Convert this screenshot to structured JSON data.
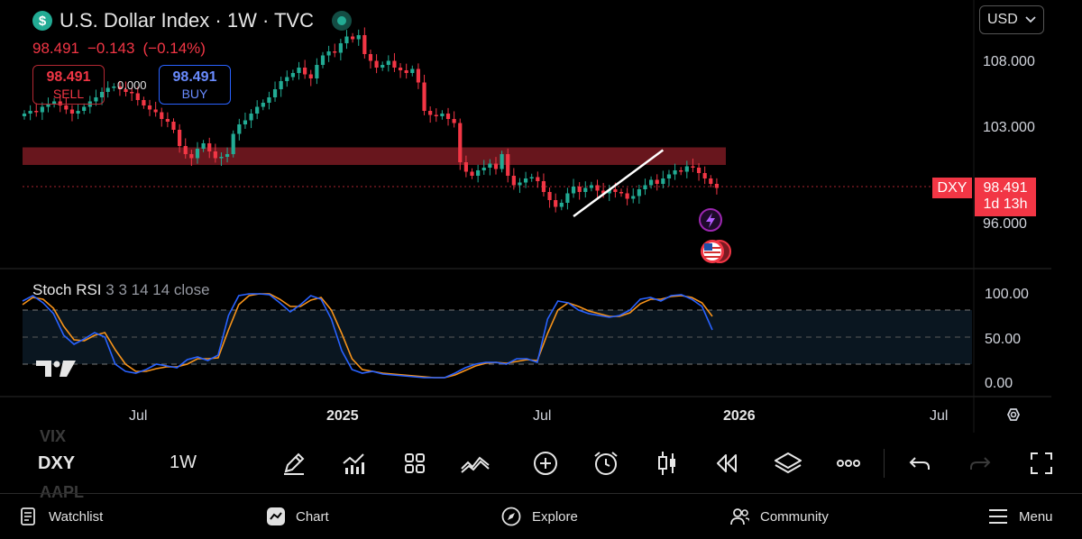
{
  "header": {
    "logo_glyph": "$",
    "title": "U.S. Dollar Index · 1W · TVC",
    "price": "98.491",
    "change": "−0.143",
    "change_pct": "(−0.14%)"
  },
  "trade": {
    "sell_price": "98.491",
    "sell_label": "SELL",
    "buy_price": "98.491",
    "buy_label": "BUY",
    "spread": "0.000"
  },
  "currency": {
    "value": "USD",
    "icon": "chevron-down-icon"
  },
  "price_scale": {
    "ticks": [
      "108.000",
      "103.000",
      "96.000"
    ]
  },
  "last_price_label": {
    "symbol": "DXY",
    "price": "98.491",
    "countdown": "1d 13h"
  },
  "indicator": {
    "name": "Stoch RSI",
    "params": "3 3 14 14 close",
    "ticks": [
      "100.00",
      "50.00",
      "0.00"
    ]
  },
  "time_axis": {
    "labels": [
      "Jul",
      "2025",
      "Jul",
      "2026",
      "Jul"
    ]
  },
  "colors": {
    "up": "#22ab94",
    "down": "#f23645",
    "k_line": "#2962ff",
    "d_line": "#f7931a",
    "zone": "#7a1a22"
  },
  "toolbar": {
    "tickers": [
      "VIX",
      "DXY",
      "AAPL"
    ],
    "interval": "1W",
    "icons": [
      "pencil-icon",
      "indicators-icon",
      "grid-icon",
      "strategy-icon",
      "add-icon",
      "alarm-icon",
      "candles-icon",
      "replay-icon",
      "layers-icon",
      "more-icon",
      "undo-icon",
      "redo-icon",
      "fullscreen-icon"
    ]
  },
  "nav": {
    "watchlist": "Watchlist",
    "chart": "Chart",
    "explore": "Explore",
    "community": "Community",
    "menu": "Menu"
  },
  "chart_data": {
    "type": "candlestick",
    "interval": "1W",
    "price_scale_ticks": [
      96,
      103,
      108
    ],
    "last_price": 98.491,
    "resistance_zone": [
      100.2,
      101.5
    ],
    "trendline": {
      "from": [
        92,
        96.4
      ],
      "to": [
        107,
        101.3
      ]
    },
    "closes": [
      104.0,
      104.2,
      104.1,
      104.5,
      104.7,
      104.9,
      104.6,
      104.3,
      104.0,
      104.2,
      104.5,
      104.9,
      105.2,
      105.6,
      105.9,
      106.0,
      105.8,
      105.6,
      105.5,
      105.0,
      104.6,
      104.3,
      104.1,
      103.6,
      103.4,
      102.8,
      101.6,
      101.0,
      100.7,
      101.4,
      101.8,
      101.2,
      100.7,
      100.8,
      101.0,
      102.5,
      103.2,
      103.5,
      104.0,
      104.5,
      104.8,
      105.2,
      105.8,
      106.4,
      106.7,
      107.0,
      107.4,
      106.9,
      106.6,
      107.6,
      108.3,
      108.6,
      108.5,
      109.2,
      109.7,
      109.5,
      109.8,
      108.4,
      107.9,
      107.4,
      107.6,
      107.9,
      107.4,
      107.2,
      107.0,
      107.3,
      106.3,
      104.2,
      103.9,
      103.8,
      104.0,
      103.6,
      103.3,
      100.4,
      99.7,
      99.4,
      99.8,
      100.0,
      100.3,
      99.9,
      101.0,
      99.4,
      98.7,
      98.9,
      99.2,
      99.3,
      99.0,
      98.2,
      97.6,
      97.1,
      97.4,
      98.1,
      98.6,
      98.2,
      98.5,
      98.7,
      98.3,
      98.1,
      98.4,
      98.2,
      98.1,
      97.7,
      97.9,
      98.4,
      98.7,
      99.1,
      98.8,
      99.2,
      99.5,
      99.8,
      99.7,
      100.1,
      100.0,
      99.6,
      99.2,
      98.8,
      98.5
    ],
    "stoch_rsi_k": [
      90,
      96,
      88,
      76,
      52,
      42,
      48,
      55,
      50,
      20,
      12,
      10,
      14,
      20,
      18,
      16,
      25,
      28,
      24,
      30,
      74,
      96,
      98,
      98,
      97,
      88,
      78,
      86,
      96,
      92,
      70,
      35,
      14,
      10,
      12,
      9,
      8,
      7,
      6,
      5,
      5,
      5,
      10,
      16,
      20,
      22,
      22,
      20,
      26,
      26,
      22,
      70,
      90,
      88,
      80,
      76,
      74,
      72,
      74,
      80,
      92,
      94,
      90,
      96,
      97,
      92,
      84,
      58
    ],
    "stoch_rsi_d": [
      86,
      94,
      92,
      82,
      62,
      47,
      46,
      52,
      55,
      36,
      20,
      12,
      12,
      15,
      17,
      17,
      20,
      26,
      26,
      27,
      58,
      86,
      96,
      98,
      98,
      92,
      84,
      84,
      91,
      94,
      80,
      54,
      26,
      14,
      12,
      10,
      9,
      8,
      7,
      6,
      5,
      5,
      8,
      13,
      18,
      21,
      22,
      21,
      23,
      25,
      24,
      54,
      80,
      88,
      84,
      79,
      76,
      73,
      73,
      77,
      87,
      92,
      92,
      95,
      96,
      94,
      88,
      73
    ]
  }
}
